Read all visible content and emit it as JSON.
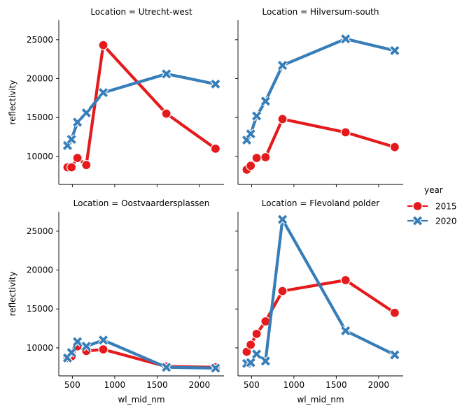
{
  "chart_data": {
    "type": "line",
    "facet_label": "Location",
    "xlabel": "wl_mid_nm",
    "ylabel": "reflectivity",
    "x": [
      443,
      490,
      560,
      665,
      865,
      1610,
      2190
    ],
    "xlim": [
      340,
      2290
    ],
    "ylim": [
      6400,
      27500
    ],
    "xticks": [
      500,
      1000,
      1500,
      2000
    ],
    "yticks": [
      10000,
      15000,
      20000,
      25000
    ],
    "grid": false,
    "legend": {
      "title": "year",
      "position": "right",
      "entries": [
        {
          "name": "2015",
          "color": "#e41a1c",
          "marker": "circle"
        },
        {
          "name": "2020",
          "color": "#377eb8",
          "marker": "x"
        }
      ]
    },
    "panels": [
      {
        "location": "Utrecht-west",
        "series": [
          {
            "name": "2015",
            "values": [
              8600,
              8600,
              9800,
              8900,
              24300,
              15500,
              11000
            ]
          },
          {
            "name": "2020",
            "values": [
              11400,
              12200,
              14400,
              15600,
              18200,
              20600,
              19300
            ]
          }
        ]
      },
      {
        "location": "Hilversum-south",
        "series": [
          {
            "name": "2015",
            "values": [
              8300,
              8800,
              9800,
              9900,
              14800,
              13100,
              11200
            ]
          },
          {
            "name": "2020",
            "values": [
              12100,
              12900,
              15200,
              17100,
              21700,
              25100,
              23600
            ]
          }
        ]
      },
      {
        "location": "Oostvaardersplassen",
        "series": [
          {
            "name": "2015",
            "values": [
              8700,
              8900,
              10200,
              9600,
              9800,
              7600,
              7500
            ]
          },
          {
            "name": "2020",
            "values": [
              8700,
              9400,
              10800,
              10200,
              11000,
              7500,
              7400
            ]
          }
        ]
      },
      {
        "location": "Flevoland polder",
        "series": [
          {
            "name": "2015",
            "values": [
              9500,
              10400,
              11800,
              13400,
              17300,
              18700,
              14500
            ]
          },
          {
            "name": "2020",
            "values": [
              8000,
              8100,
              9200,
              8300,
              26500,
              12200,
              9100
            ]
          }
        ]
      }
    ]
  }
}
